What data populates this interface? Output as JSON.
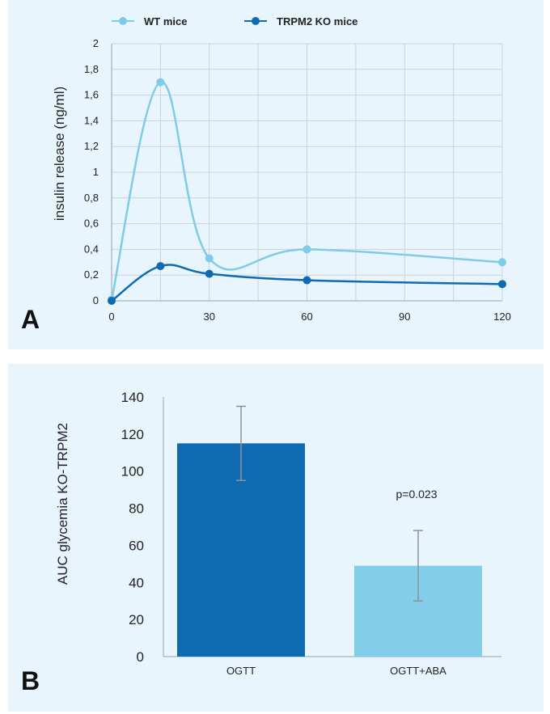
{
  "chart_data": [
    {
      "type": "line",
      "panel_label": "A",
      "ylabel": "insulin release (ng/ml)",
      "xlabel": "",
      "xlim": [
        0,
        120
      ],
      "ylim": [
        0,
        2
      ],
      "x_ticks": [
        0,
        30,
        60,
        90,
        120
      ],
      "y_ticks": [
        0,
        0.2,
        0.4,
        0.6,
        0.8,
        1,
        1.2,
        1.4,
        1.6,
        1.8,
        2
      ],
      "y_tick_labels": [
        "0",
        "0,2",
        "0,4",
        "0,6",
        "0,8",
        "1",
        "1,2",
        "1,4",
        "1,6",
        "1,8",
        "2"
      ],
      "grid": true,
      "legend_position": "top",
      "series": [
        {
          "name": "WT mice",
          "color": "#7fcbe8",
          "x": [
            0,
            15,
            30,
            60,
            120
          ],
          "y": [
            0.01,
            1.7,
            0.33,
            0.4,
            0.3
          ]
        },
        {
          "name": "TRPM2 KO mice",
          "color": "#0f6bb1",
          "x": [
            0,
            15,
            30,
            60,
            120
          ],
          "y": [
            0,
            0.27,
            0.21,
            0.16,
            0.13
          ]
        }
      ]
    },
    {
      "type": "bar",
      "panel_label": "B",
      "ylabel": "AUC glycemia KO-TRPM2",
      "xlabel": "",
      "ylim": [
        0,
        140
      ],
      "y_ticks": [
        0,
        20,
        40,
        60,
        80,
        100,
        120,
        140
      ],
      "categories": [
        "OGTT",
        "OGTT+ABA"
      ],
      "values": [
        115,
        49
      ],
      "errors": [
        20,
        19
      ],
      "colors": [
        "#0f6bb1",
        "#82cdea"
      ],
      "annotation": "p=0.023"
    }
  ]
}
